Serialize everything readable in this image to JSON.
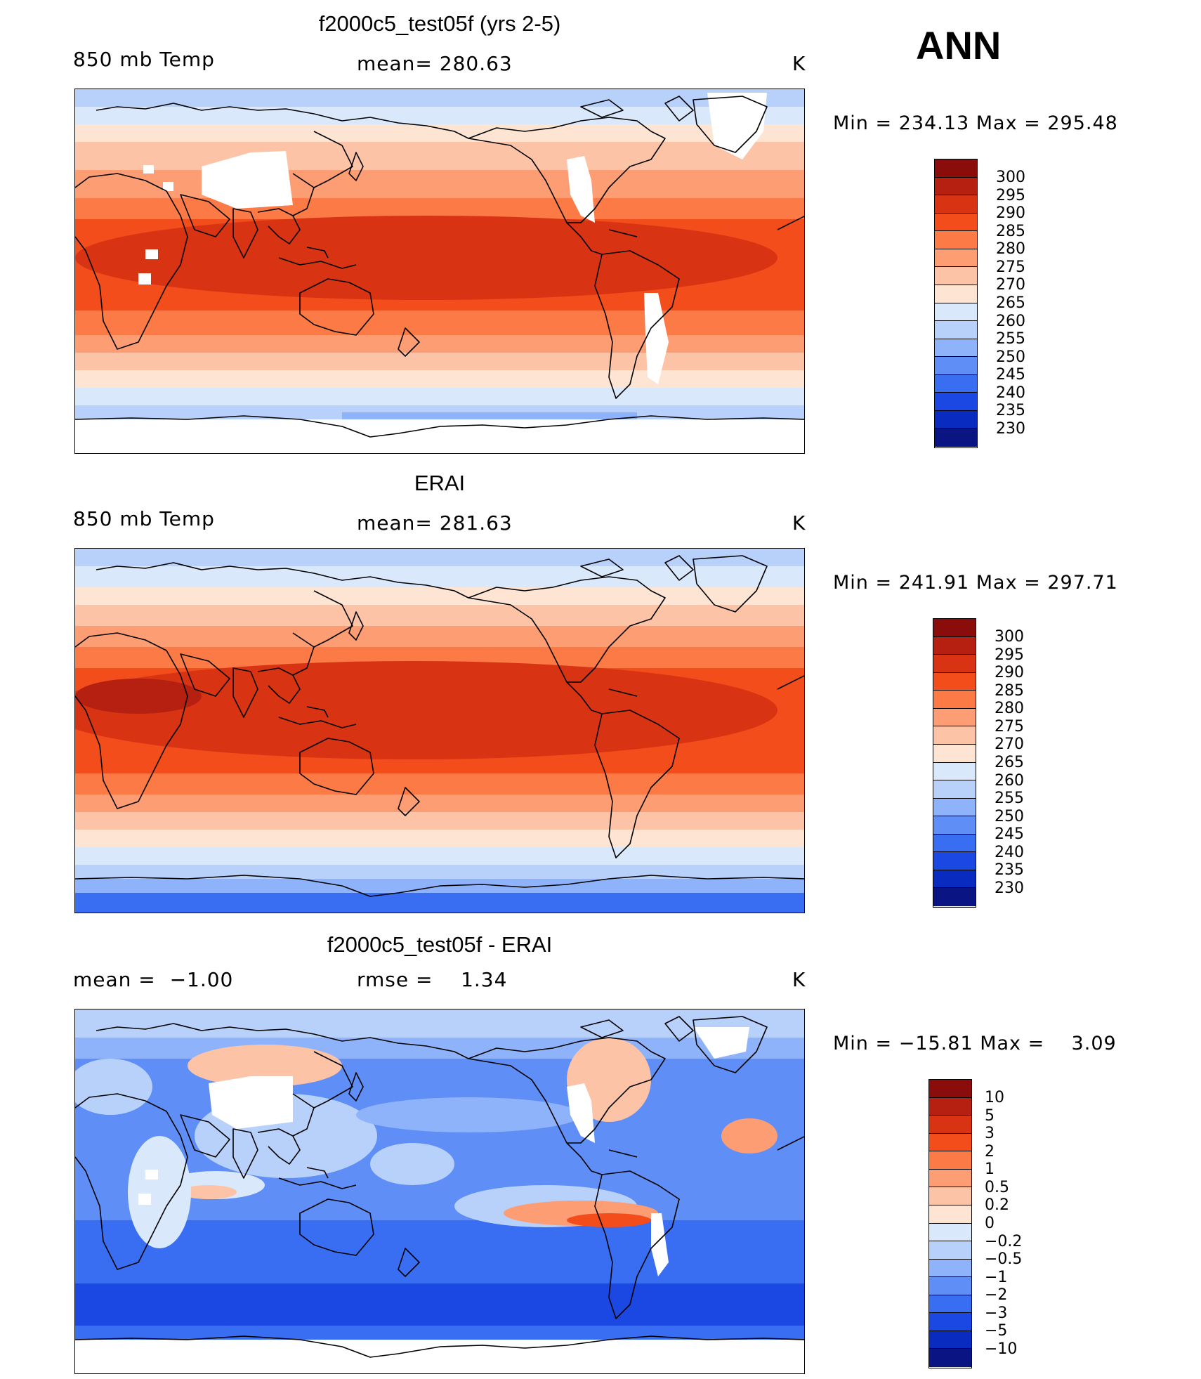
{
  "header": {
    "season": "ANN"
  },
  "panels": [
    {
      "title": "f2000c5_test05f (yrs 2-5)",
      "left_label": "850 mb Temp",
      "center_label": "mean= 280.63",
      "units": "K",
      "minmax": "Min = 234.13 Max = 295.48",
      "colorbar": {
        "labels": [
          "300",
          "295",
          "290",
          "285",
          "280",
          "275",
          "270",
          "265",
          "260",
          "255",
          "250",
          "245",
          "240",
          "235",
          "230"
        ],
        "colors": [
          "#8b0d0b",
          "#b52011",
          "#d83313",
          "#f34d1c",
          "#fb7a45",
          "#fc9d74",
          "#fdc3a6",
          "#fee4d2",
          "#d9e9fb",
          "#b8d1fb",
          "#8eb3fb",
          "#5f8ff6",
          "#3a6ef2",
          "#1b48e3",
          "#0a2bbf",
          "#0a1482"
        ]
      },
      "fill": "model"
    },
    {
      "title": "ERAI",
      "left_label": "850 mb Temp",
      "center_label": "mean= 281.63",
      "units": "K",
      "minmax": "Min = 241.91 Max = 297.71",
      "colorbar": {
        "labels": [
          "300",
          "295",
          "290",
          "285",
          "280",
          "275",
          "270",
          "265",
          "260",
          "255",
          "250",
          "245",
          "240",
          "235",
          "230"
        ],
        "colors": [
          "#8b0d0b",
          "#b52011",
          "#d83313",
          "#f34d1c",
          "#fb7a45",
          "#fc9d74",
          "#fdc3a6",
          "#fee4d2",
          "#d9e9fb",
          "#b8d1fb",
          "#8eb3fb",
          "#5f8ff6",
          "#3a6ef2",
          "#1b48e3",
          "#0a2bbf",
          "#0a1482"
        ]
      },
      "fill": "obs"
    },
    {
      "title": "f2000c5_test05f - ERAI",
      "left_label": "mean =  −1.00",
      "center_label": "rmse =    1.34",
      "units": "K",
      "minmax": "Min = −15.81 Max =    3.09",
      "colorbar": {
        "labels": [
          "10",
          "5",
          "3",
          "2",
          "1",
          "0.5",
          "0.2",
          "0",
          "−0.2",
          "−0.5",
          "−1",
          "−2",
          "−3",
          "−5",
          "−10"
        ],
        "colors": [
          "#8b0d0b",
          "#b52011",
          "#d83313",
          "#f34d1c",
          "#fb7a45",
          "#fc9d74",
          "#fdc3a6",
          "#fee4d2",
          "#d9e9fb",
          "#b8d1fb",
          "#8eb3fb",
          "#5f8ff6",
          "#3a6ef2",
          "#1b48e3",
          "#0a2bbf",
          "#0a1482"
        ]
      },
      "fill": "diff"
    }
  ]
}
